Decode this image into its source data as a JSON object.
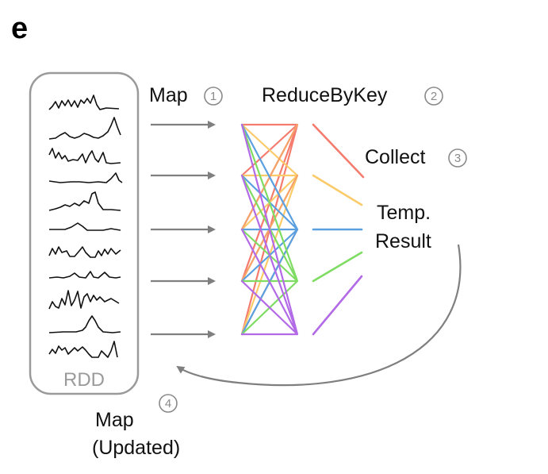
{
  "panel_letter": "e",
  "rdd_label": "RDD",
  "steps": {
    "map": {
      "label": "Map",
      "number": "1"
    },
    "reduce": {
      "label": "ReduceByKey",
      "number": "2"
    },
    "collect": {
      "label": "Collect",
      "number": "3"
    },
    "map_updated": {
      "label_line1": "Map",
      "label_line2": "(Updated)",
      "number": "4"
    }
  },
  "temp_result": {
    "line1": "Temp.",
    "line2": "Result"
  },
  "colors": {
    "red": "#f47b6e",
    "yellow": "#fbcb6a",
    "blue": "#5a9fe0",
    "green": "#7fdc63",
    "purple": "#b26ae6",
    "orange": "#f6a36a",
    "arrow_gray": "#7f7f7f",
    "rdd_border": "#9a9a9a"
  }
}
